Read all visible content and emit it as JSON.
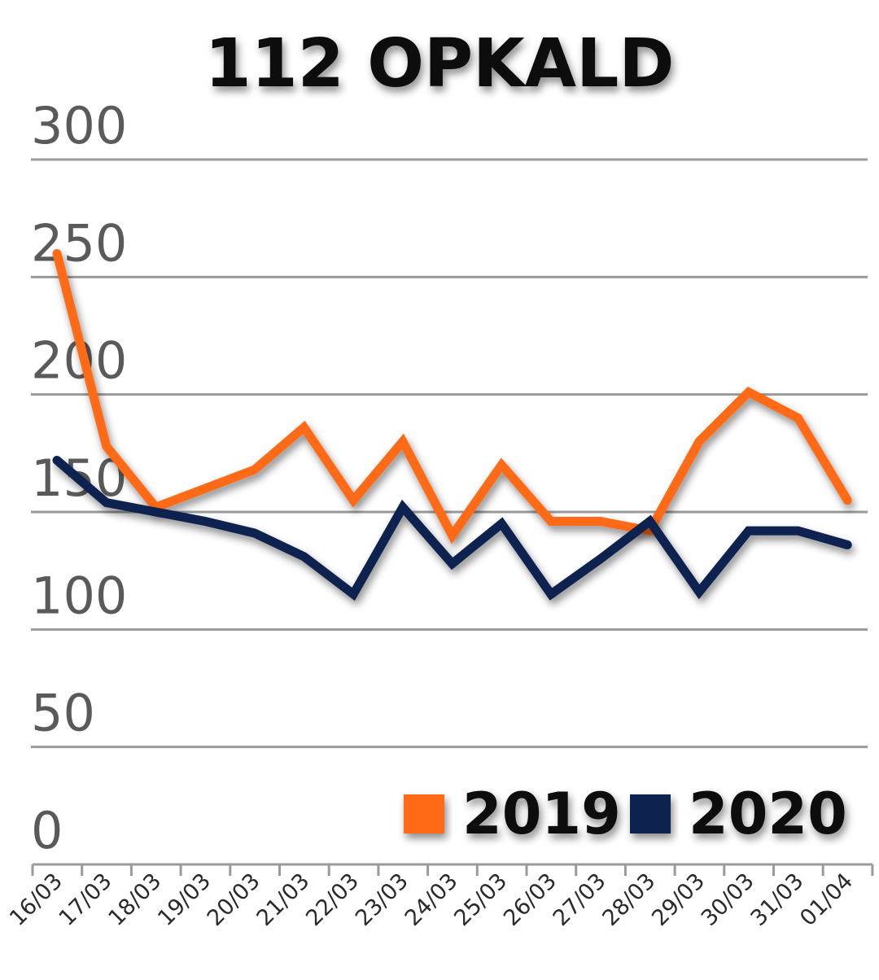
{
  "chart_data": {
    "type": "line",
    "title": "112 OPKALD",
    "xlabel": "",
    "ylabel": "",
    "categories": [
      "16/03",
      "17/03",
      "18/03",
      "19/03",
      "20/03",
      "21/03",
      "22/03",
      "23/03",
      "24/03",
      "25/03",
      "26/03",
      "27/03",
      "28/03",
      "29/03",
      "30/03",
      "31/03",
      "01/04"
    ],
    "y_ticks": [
      "0",
      "50",
      "100",
      "150",
      "200",
      "250",
      "300"
    ],
    "ylim": [
      0,
      300
    ],
    "grid": true,
    "legend_position": "bottom-right",
    "series": [
      {
        "name": "2019",
        "color": "#ff6a13",
        "values": [
          260,
          178,
          152,
          160,
          168,
          186,
          155,
          180,
          140,
          170,
          146,
          146,
          142,
          180,
          201,
          190,
          155
        ]
      },
      {
        "name": "2020",
        "color": "#0b2150",
        "values": [
          172,
          154,
          150,
          146,
          141,
          131,
          115,
          152,
          128,
          145,
          115,
          130,
          146,
          116,
          142,
          142,
          136
        ]
      }
    ]
  }
}
